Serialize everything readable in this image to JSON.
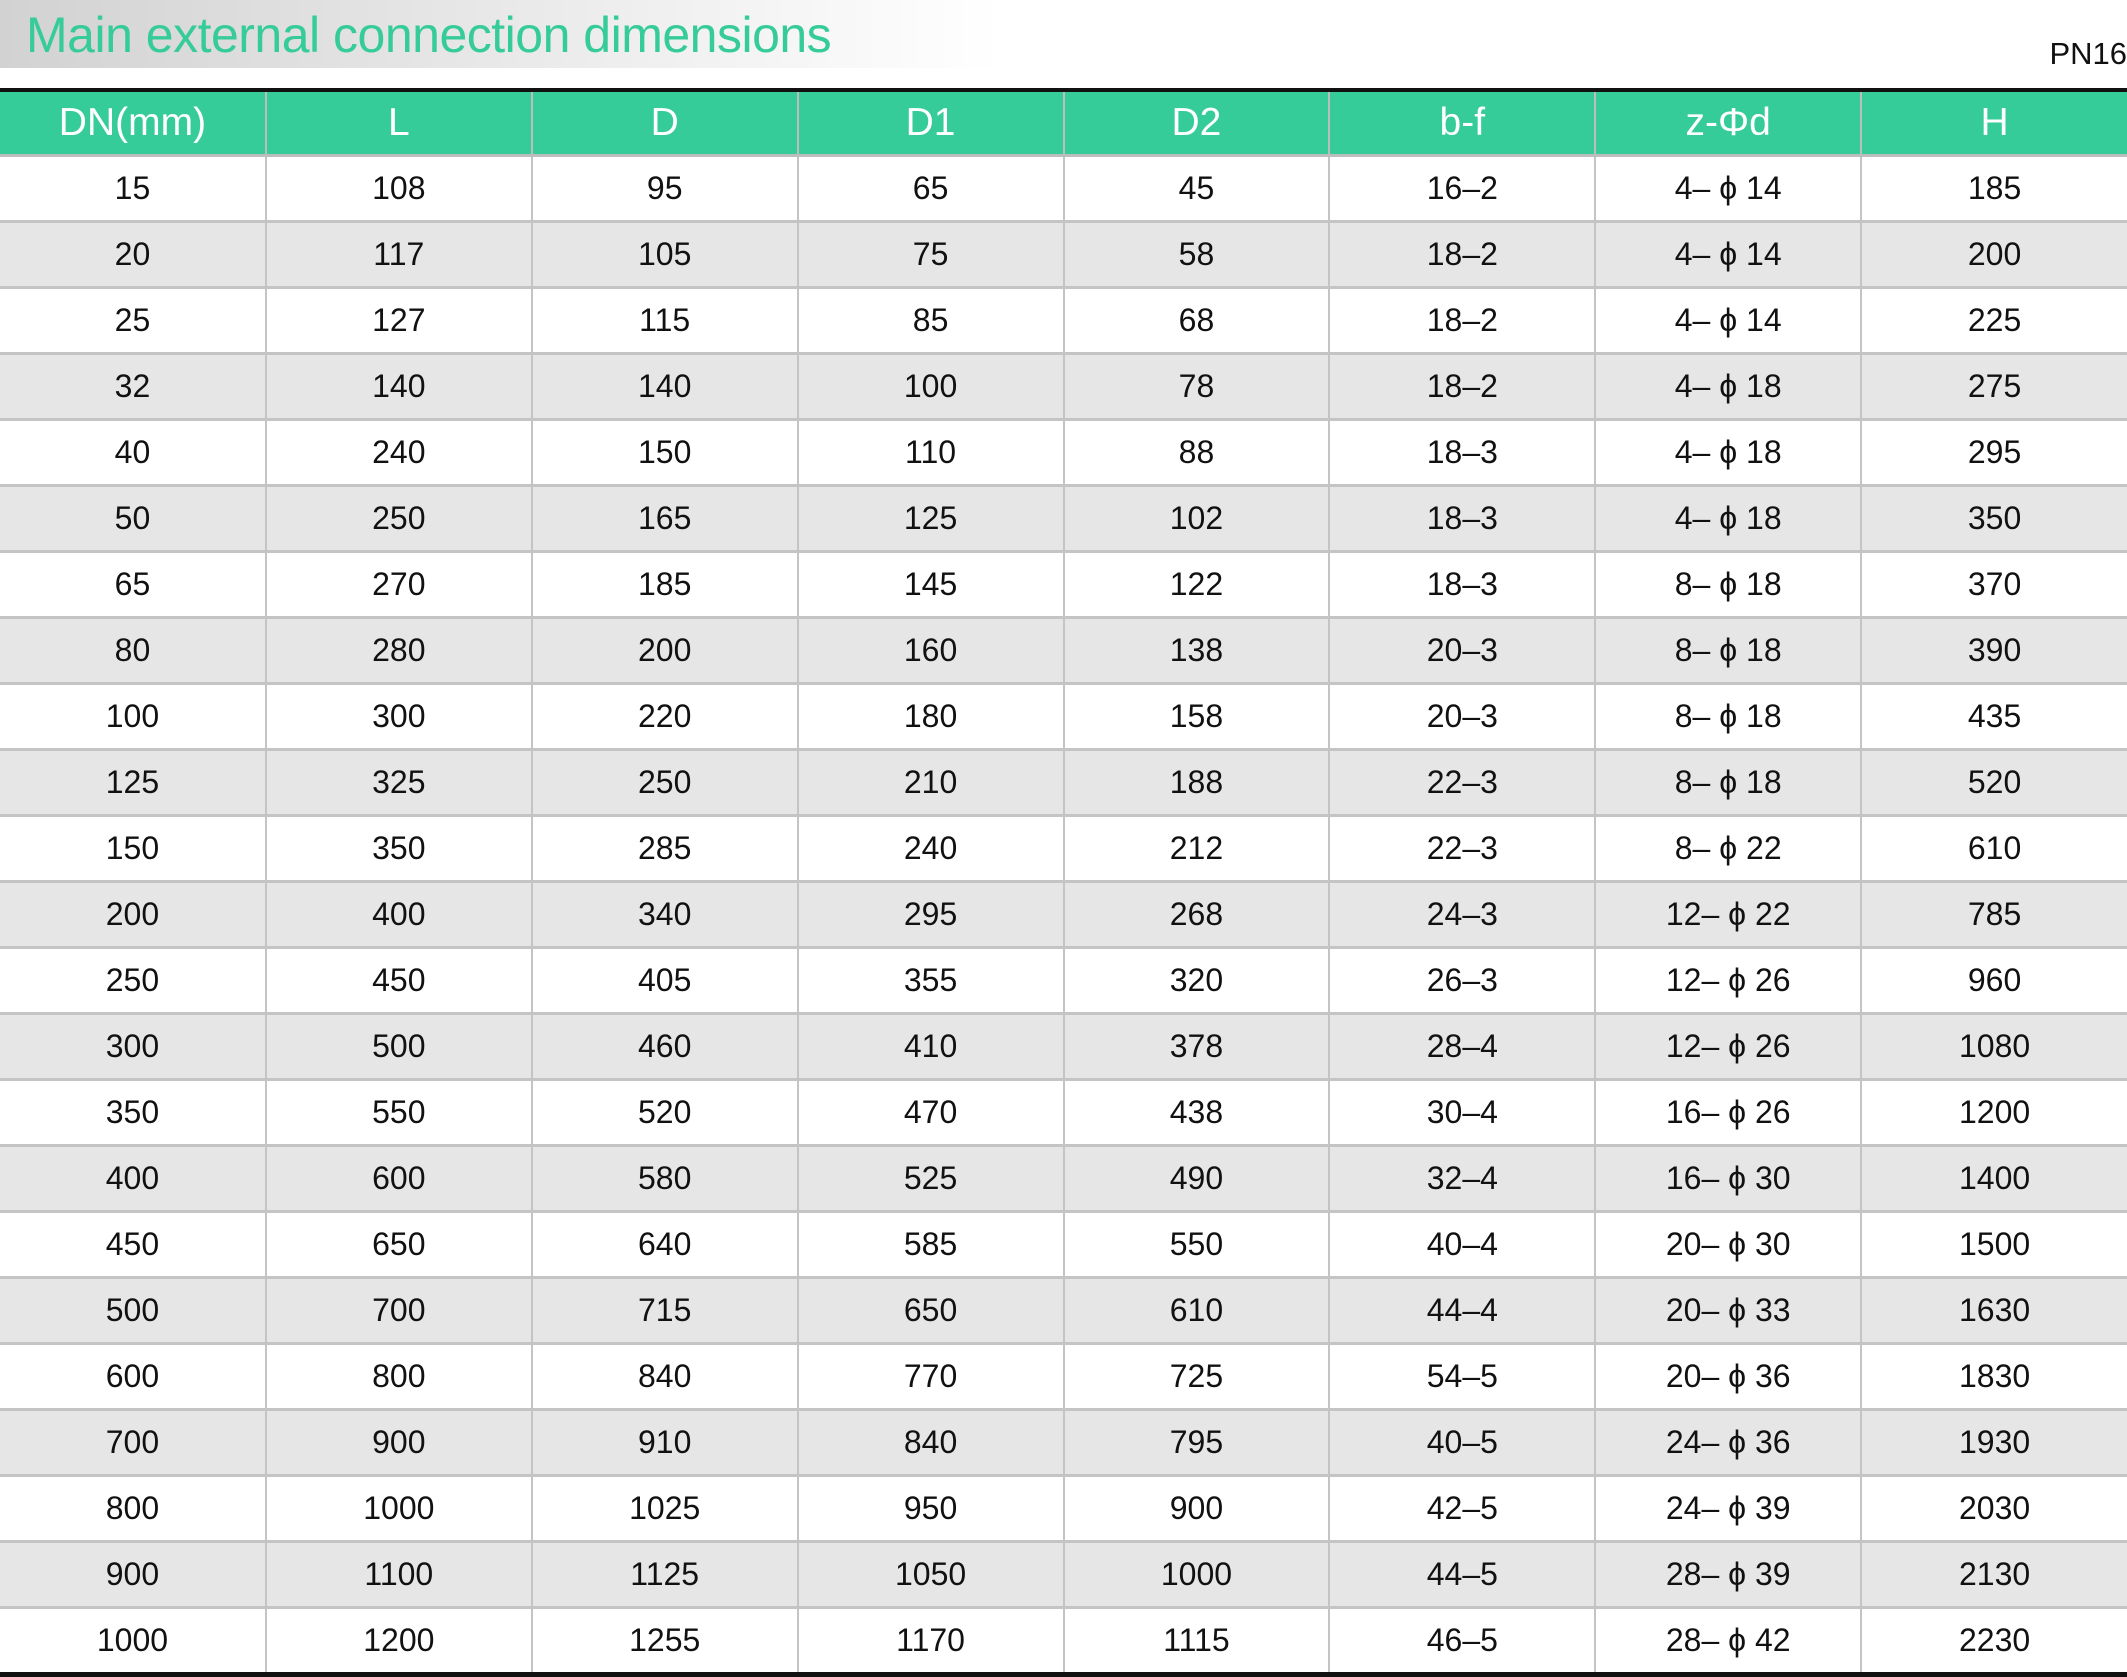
{
  "title": "Main external connection dimensions",
  "pressure_class": "PN16",
  "colors": {
    "accent": "#36cc99",
    "stripe": "#e6e6e6"
  },
  "table": {
    "headers": [
      "DN(mm)",
      "L",
      "D",
      "D1",
      "D2",
      "b-f",
      "z-Φd",
      "H"
    ],
    "rows": [
      [
        "15",
        "108",
        "95",
        "65",
        "45",
        "16–2",
        "4– ϕ 14",
        "185"
      ],
      [
        "20",
        "117",
        "105",
        "75",
        "58",
        "18–2",
        "4– ϕ 14",
        "200"
      ],
      [
        "25",
        "127",
        "115",
        "85",
        "68",
        "18–2",
        "4– ϕ 14",
        "225"
      ],
      [
        "32",
        "140",
        "140",
        "100",
        "78",
        "18–2",
        "4– ϕ 18",
        "275"
      ],
      [
        "40",
        "240",
        "150",
        "110",
        "88",
        "18–3",
        "4– ϕ 18",
        "295"
      ],
      [
        "50",
        "250",
        "165",
        "125",
        "102",
        "18–3",
        "4– ϕ 18",
        "350"
      ],
      [
        "65",
        "270",
        "185",
        "145",
        "122",
        "18–3",
        "8– ϕ 18",
        "370"
      ],
      [
        "80",
        "280",
        "200",
        "160",
        "138",
        "20–3",
        "8– ϕ 18",
        "390"
      ],
      [
        "100",
        "300",
        "220",
        "180",
        "158",
        "20–3",
        "8– ϕ 18",
        "435"
      ],
      [
        "125",
        "325",
        "250",
        "210",
        "188",
        "22–3",
        "8– ϕ 18",
        "520"
      ],
      [
        "150",
        "350",
        "285",
        "240",
        "212",
        "22–3",
        "8– ϕ 22",
        "610"
      ],
      [
        "200",
        "400",
        "340",
        "295",
        "268",
        "24–3",
        "12– ϕ 22",
        "785"
      ],
      [
        "250",
        "450",
        "405",
        "355",
        "320",
        "26–3",
        "12– ϕ 26",
        "960"
      ],
      [
        "300",
        "500",
        "460",
        "410",
        "378",
        "28–4",
        "12– ϕ 26",
        "1080"
      ],
      [
        "350",
        "550",
        "520",
        "470",
        "438",
        "30–4",
        "16– ϕ 26",
        "1200"
      ],
      [
        "400",
        "600",
        "580",
        "525",
        "490",
        "32–4",
        "16– ϕ 30",
        "1400"
      ],
      [
        "450",
        "650",
        "640",
        "585",
        "550",
        "40–4",
        "20– ϕ 30",
        "1500"
      ],
      [
        "500",
        "700",
        "715",
        "650",
        "610",
        "44–4",
        "20– ϕ 33",
        "1630"
      ],
      [
        "600",
        "800",
        "840",
        "770",
        "725",
        "54–5",
        "20– ϕ 36",
        "1830"
      ],
      [
        "700",
        "900",
        "910",
        "840",
        "795",
        "40–5",
        "24– ϕ 36",
        "1930"
      ],
      [
        "800",
        "1000",
        "1025",
        "950",
        "900",
        "42–5",
        "24– ϕ 39",
        "2030"
      ],
      [
        "900",
        "1100",
        "1125",
        "1050",
        "1000",
        "44–5",
        "28– ϕ 39",
        "2130"
      ],
      [
        "1000",
        "1200",
        "1255",
        "1170",
        "1115",
        "46–5",
        "28– ϕ 42",
        "2230"
      ]
    ]
  }
}
